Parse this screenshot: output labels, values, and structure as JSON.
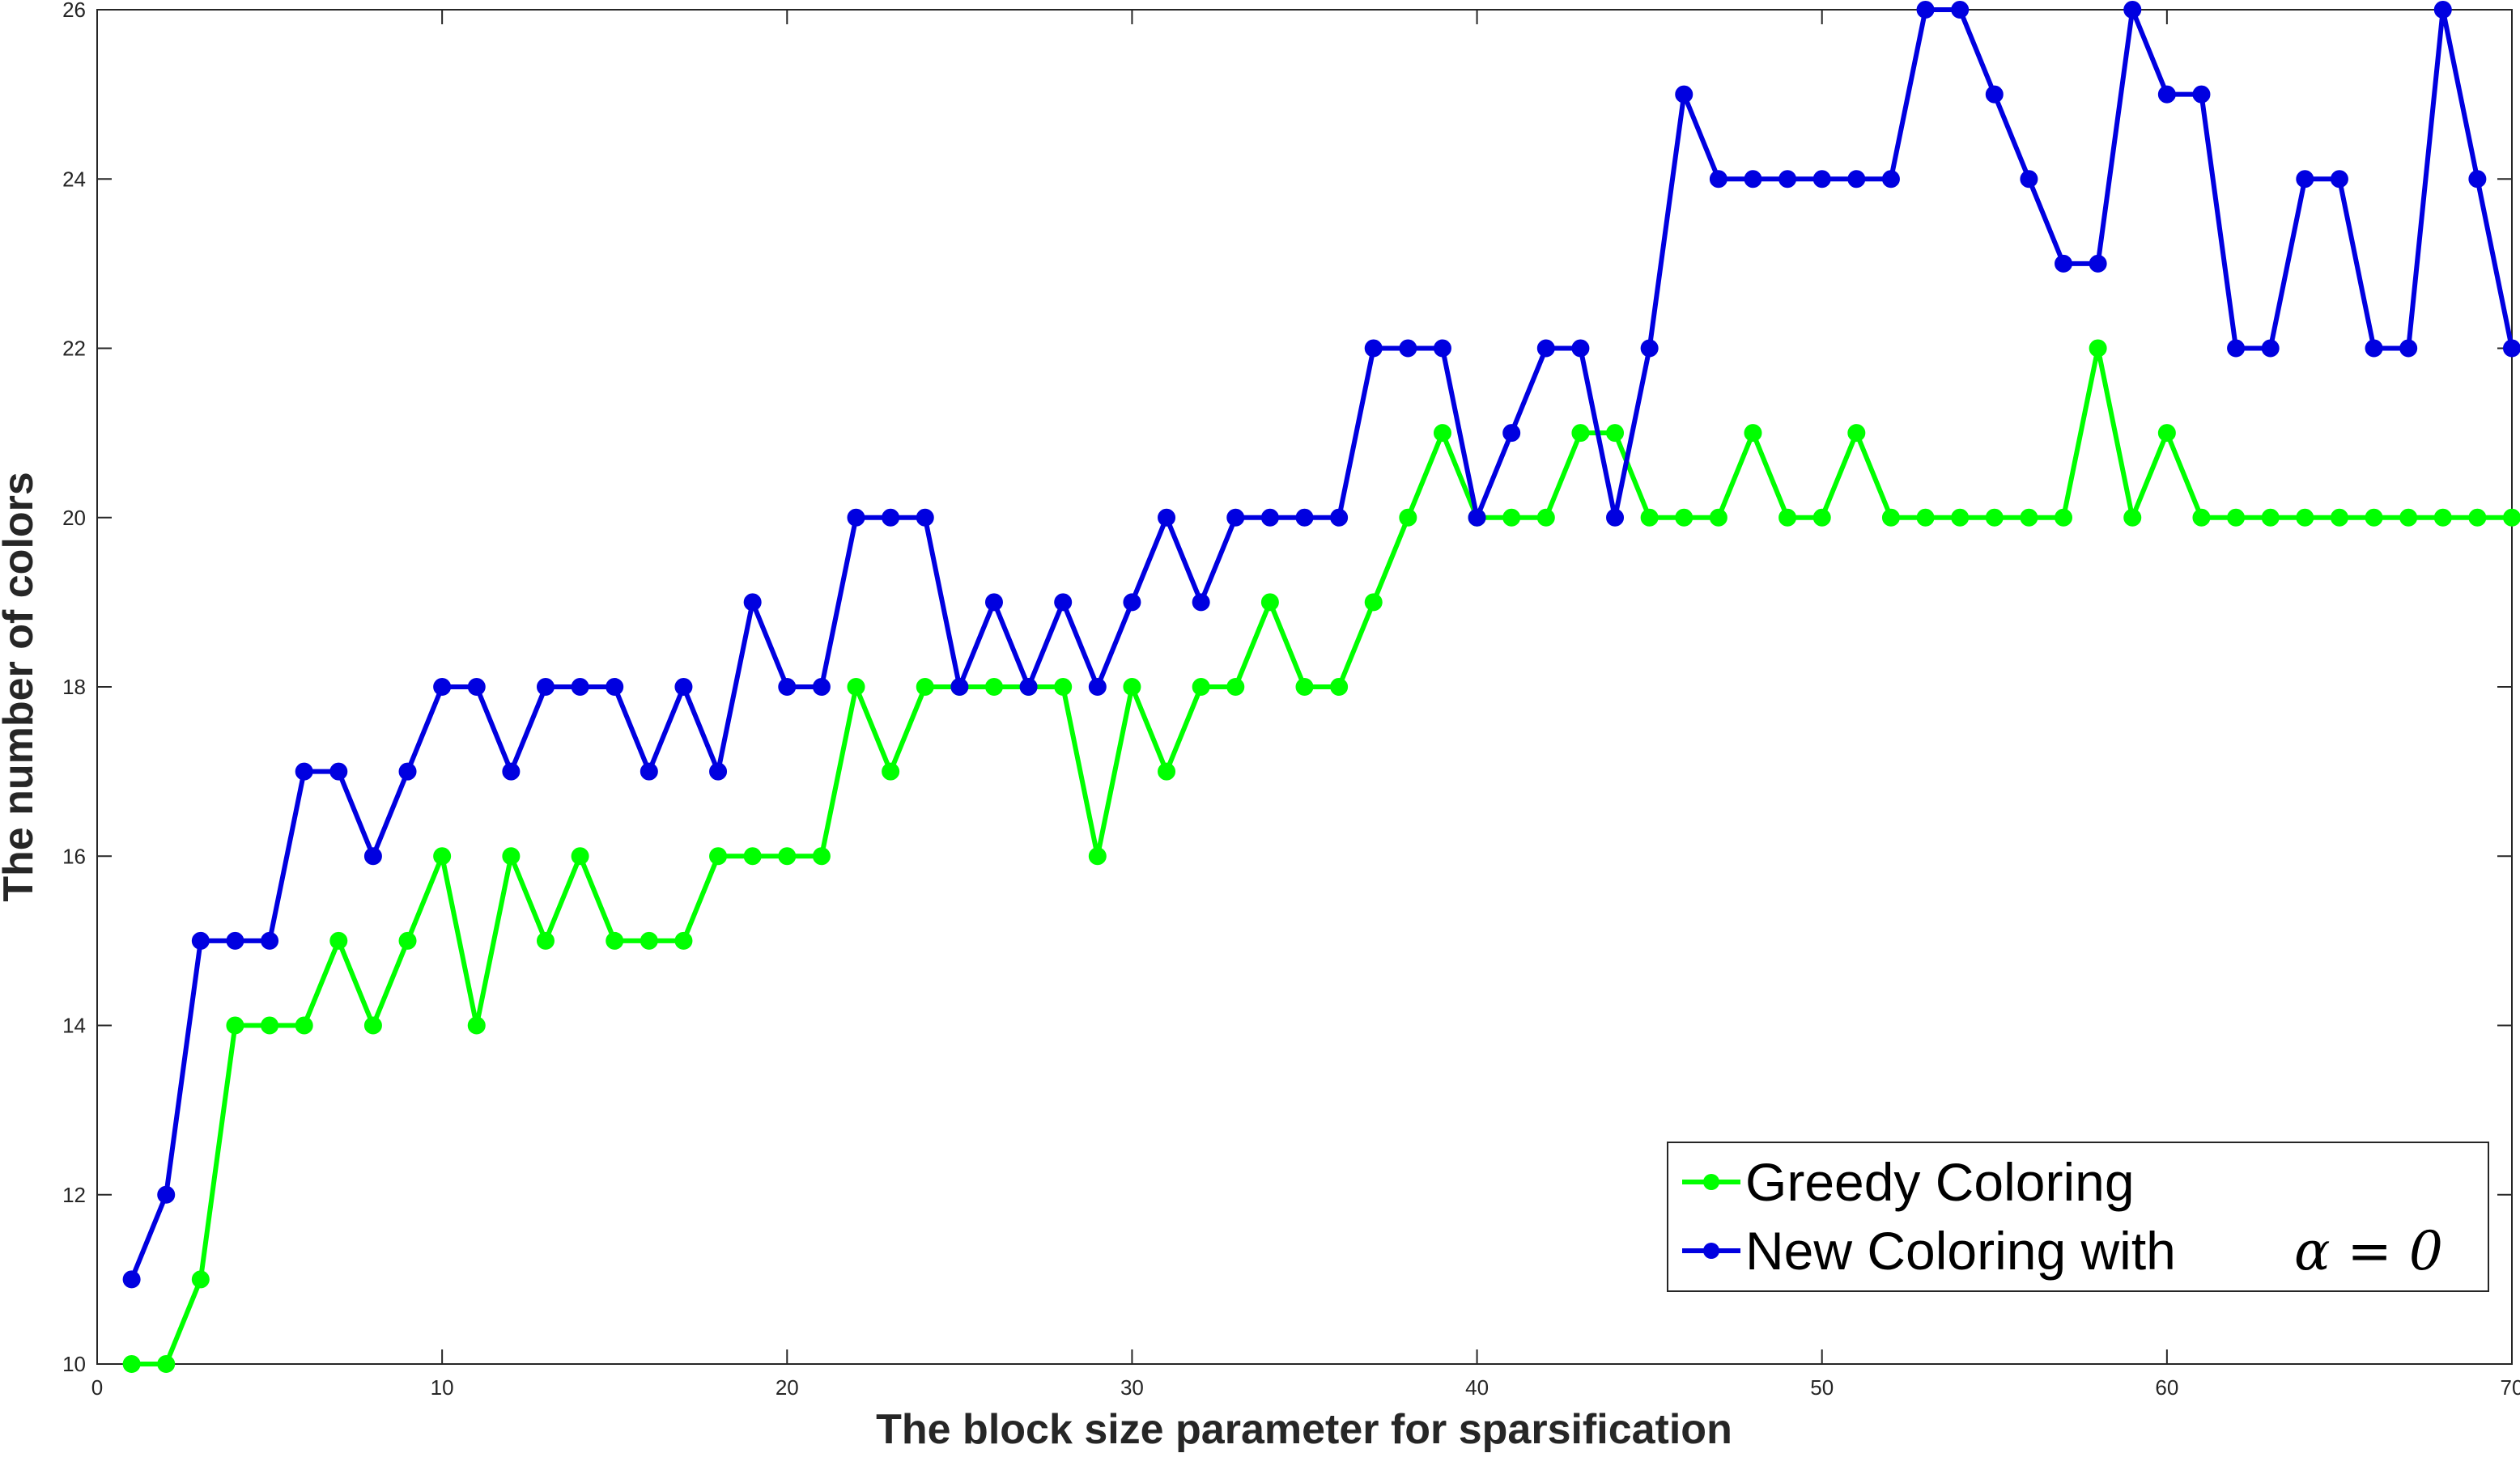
{
  "chart_data": {
    "type": "line",
    "title": "",
    "xlabel": "The block size parameter for sparsification",
    "ylabel": "The number of colors",
    "xlim": [
      0,
      70
    ],
    "ylim": [
      10,
      26
    ],
    "xticks": [
      0,
      10,
      20,
      30,
      40,
      50,
      60,
      70
    ],
    "yticks": [
      10,
      12,
      14,
      16,
      18,
      20,
      22,
      24,
      26
    ],
    "grid": false,
    "legend_position": "bottom-right",
    "x": [
      1,
      2,
      3,
      4,
      5,
      6,
      7,
      8,
      9,
      10,
      11,
      12,
      13,
      14,
      15,
      16,
      17,
      18,
      19,
      20,
      21,
      22,
      23,
      24,
      25,
      26,
      27,
      28,
      29,
      30,
      31,
      32,
      33,
      34,
      35,
      36,
      37,
      38,
      39,
      40,
      41,
      42,
      43,
      44,
      45,
      46,
      47,
      48,
      49,
      50,
      51,
      52,
      53,
      54,
      55,
      56,
      57,
      58,
      59,
      60,
      61,
      62,
      63,
      64,
      65,
      66,
      67,
      68,
      69,
      70
    ],
    "series": [
      {
        "name": "Greedy Coloring",
        "color": "#00ff00",
        "values": [
          10,
          10,
          11,
          14,
          14,
          14,
          15,
          14,
          15,
          16,
          14,
          16,
          15,
          16,
          15,
          15,
          15,
          16,
          16,
          16,
          16,
          18,
          17,
          18,
          18,
          18,
          18,
          18,
          16,
          18,
          17,
          18,
          18,
          19,
          18,
          18,
          19,
          20,
          21,
          20,
          20,
          20,
          21,
          21,
          20,
          20,
          20,
          21,
          20,
          20,
          21,
          20,
          20,
          20,
          20,
          20,
          20,
          22,
          20,
          21,
          20,
          20,
          20,
          20,
          20,
          20,
          20,
          20,
          20,
          20
        ]
      },
      {
        "name": "New Coloring with",
        "name_symbol": "α = 0",
        "color": "#0000e0",
        "values": [
          11,
          12,
          15,
          15,
          15,
          17,
          17,
          16,
          17,
          18,
          18,
          17,
          18,
          18,
          18,
          17,
          18,
          17,
          19,
          18,
          18,
          20,
          20,
          20,
          18,
          19,
          18,
          19,
          18,
          19,
          20,
          19,
          20,
          20,
          20,
          20,
          22,
          22,
          22,
          20,
          21,
          22,
          22,
          20,
          22,
          25,
          24,
          24,
          24,
          24,
          24,
          24,
          26,
          26,
          25,
          24,
          23,
          23,
          26,
          25,
          25,
          22,
          22,
          24,
          24,
          22,
          22,
          26,
          24,
          22
        ]
      }
    ]
  }
}
